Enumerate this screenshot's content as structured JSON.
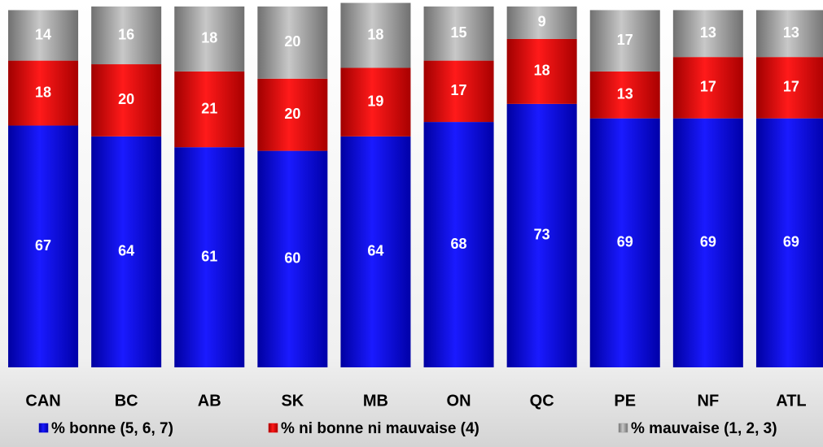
{
  "chart_data": {
    "type": "stacked-bar",
    "categories": [
      "CAN",
      "BC",
      "AB",
      "SK",
      "MB",
      "ON",
      "QC",
      "PE",
      "NF",
      "ATL"
    ],
    "series": [
      {
        "name": "% bonne (5, 6, 7)",
        "color": "#0000dd",
        "values": [
          67,
          64,
          61,
          60,
          64,
          68,
          73,
          69,
          69,
          69
        ]
      },
      {
        "name": "% ni bonne ni mauvaise (4)",
        "color": "#dd0000",
        "values": [
          18,
          20,
          21,
          20,
          19,
          17,
          18,
          13,
          17,
          17
        ]
      },
      {
        "name": "% mauvaise (1, 2, 3)",
        "color": "#9a9a9a",
        "values": [
          14,
          16,
          18,
          20,
          18,
          15,
          9,
          17,
          13,
          13
        ]
      }
    ],
    "ylim": [
      0,
      100
    ],
    "legend": "bottom"
  }
}
